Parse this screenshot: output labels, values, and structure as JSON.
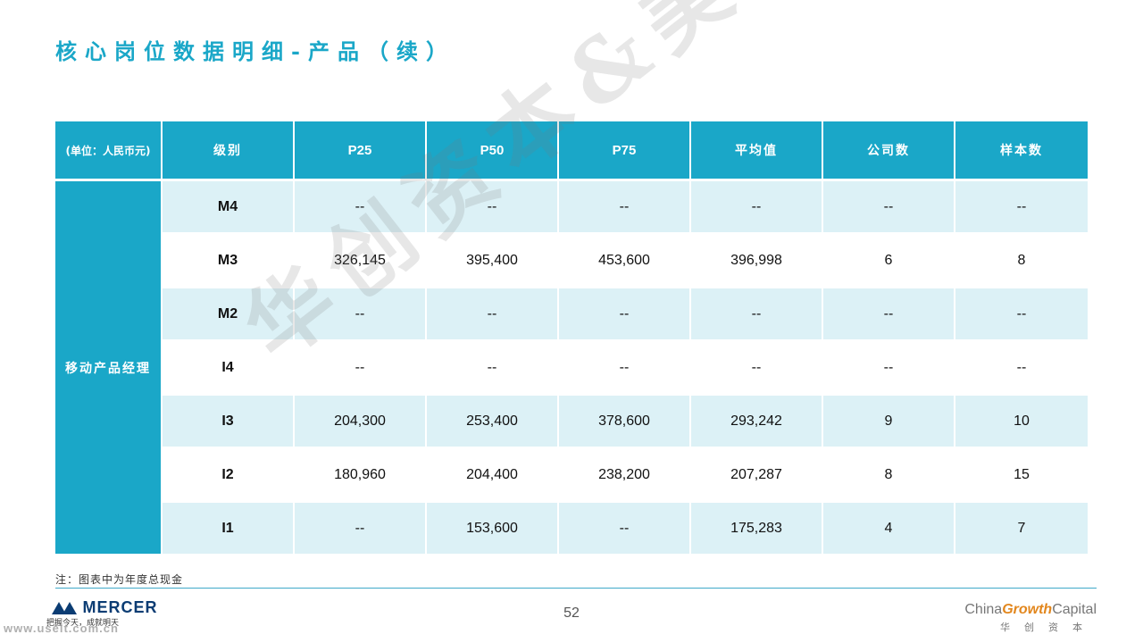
{
  "title": "核心岗位数据明细-产品（续）",
  "table": {
    "headers": [
      "(单位：人民币元)",
      "级别",
      "P25",
      "P50",
      "P75",
      "平均值",
      "公司数",
      "样本数"
    ],
    "group_label": "移动产品经理",
    "rows": [
      [
        "M4",
        "--",
        "--",
        "--",
        "--",
        "--",
        "--"
      ],
      [
        "M3",
        "326,145",
        "395,400",
        "453,600",
        "396,998",
        "6",
        "8"
      ],
      [
        "M2",
        "--",
        "--",
        "--",
        "--",
        "--",
        "--"
      ],
      [
        "I4",
        "--",
        "--",
        "--",
        "--",
        "--",
        "--"
      ],
      [
        "I3",
        "204,300",
        "253,400",
        "378,600",
        "293,242",
        "9",
        "10"
      ],
      [
        "I2",
        "180,960",
        "204,400",
        "238,200",
        "207,287",
        "8",
        "15"
      ],
      [
        "I1",
        "--",
        "153,600",
        "--",
        "175,283",
        "4",
        "7"
      ]
    ]
  },
  "watermark": "华创资本&美世",
  "note": "注：图表中为年度总现金",
  "footer": {
    "mercer_name": "MERCER",
    "mercer_tagline": "把握今天，成就明天",
    "url": "www.useit.com.cn",
    "page_number": "52",
    "cgc_prefix": "China",
    "cgc_highlight": "Growth",
    "cgc_suffix": "Capital",
    "cgc_sub": "华创资本"
  },
  "colors": {
    "accent": "#1aa7c8",
    "row_tint": "#dcf1f6",
    "mercer_navy": "#0b3c73",
    "growth_orange": "#e2861c"
  }
}
